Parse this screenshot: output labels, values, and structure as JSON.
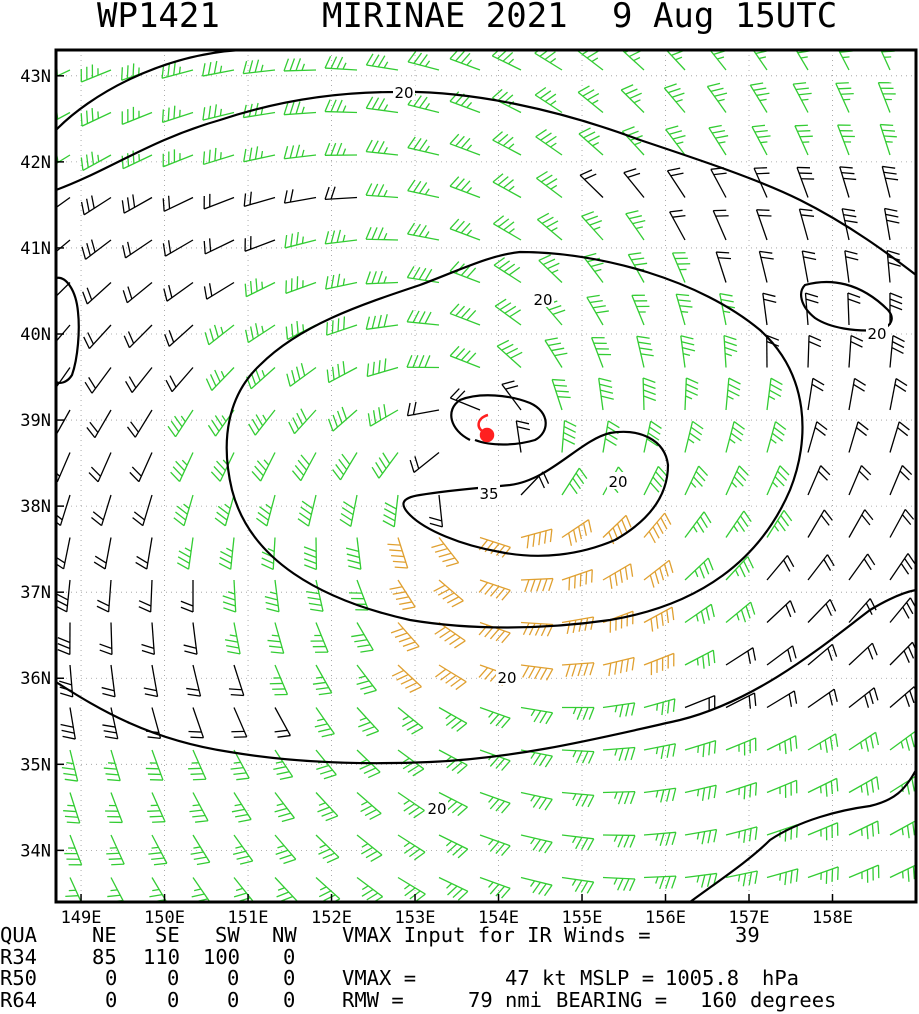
{
  "title": {
    "storm_id": "WP1421",
    "storm_name": "MIRINAE 2021",
    "datetime": "9 Aug 15UTC"
  },
  "chart_data": {
    "type": "wind-barb map",
    "x_axis": {
      "ticks": [
        "149E",
        "150E",
        "151E",
        "152E",
        "153E",
        "154E",
        "155E",
        "156E",
        "157E",
        "158E"
      ],
      "values": [
        149,
        150,
        151,
        152,
        153,
        154,
        155,
        156,
        157,
        158
      ],
      "range": [
        148.7,
        159.0
      ]
    },
    "y_axis": {
      "ticks": [
        "43N",
        "42N",
        "41N",
        "40N",
        "39N",
        "38N",
        "37N",
        "36N",
        "35N",
        "34N"
      ],
      "values": [
        43,
        42,
        41,
        40,
        39,
        38,
        37,
        36,
        35,
        34
      ],
      "range": [
        33.4,
        43.3
      ]
    },
    "storm_center": {
      "lon": 153.75,
      "lat": 38.35
    },
    "contour_labels": [
      "20",
      "20",
      "20",
      "35",
      "20",
      "20",
      "20"
    ],
    "colors": {
      "barb_low": "#000000",
      "barb_34kt": "#33cc33",
      "barb_50kt": "#e0a030",
      "contour": "#000000",
      "storm_symbol": "#ff0000",
      "grid": "#999999"
    }
  },
  "footer": {
    "header_row": [
      "QUA",
      "NE",
      "SE",
      "SW",
      "NW"
    ],
    "r34_row": [
      "R34",
      "85",
      "110",
      "100",
      "0"
    ],
    "r50_row": [
      "R50",
      "0",
      "0",
      "0",
      "0"
    ],
    "r64_row": [
      "R64",
      "0",
      "0",
      "0",
      "0"
    ],
    "vmax_input_label": "VMAX Input for IR Winds =",
    "vmax_input_value": "39",
    "vmax_label": "VMAX =",
    "vmax_value": "47",
    "vmax_unit": "kt",
    "mslp_label": "MSLP =",
    "mslp_value": "1005.8",
    "mslp_unit": "hPa",
    "rmw_label": "RMW =",
    "rmw_value": "79",
    "rmw_unit": "nmi",
    "bearing_label": "BEARING =",
    "bearing_value": "160",
    "bearing_unit": "degrees"
  }
}
